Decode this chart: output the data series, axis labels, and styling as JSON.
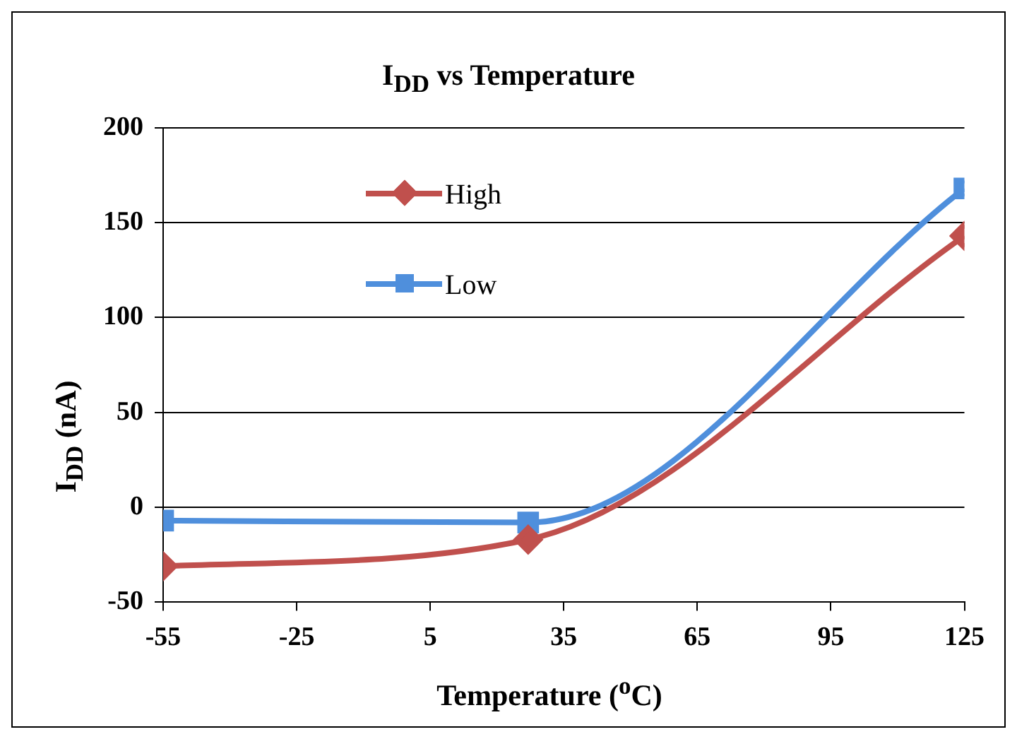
{
  "chart_data": {
    "type": "line",
    "title": "I$_{DD}$ vs Temperature",
    "xlabel": "Temperature ($^{o}$C)",
    "ylabel": "I$_{DD}$ (nA)",
    "xlim": [
      -55,
      125
    ],
    "xticks": [
      -55,
      -25,
      5,
      35,
      65,
      95,
      125
    ],
    "ylim": [
      -50,
      200
    ],
    "yticks": [
      -50,
      0,
      50,
      100,
      150,
      200
    ],
    "grid": "y",
    "legend": "top left",
    "line_style": "solid",
    "series": [
      {
        "name": "High",
        "color": "#c0504d",
        "marker": "diamond",
        "x": [
          -55,
          27,
          125
        ],
        "values": [
          -31,
          -17,
          143
        ]
      },
      {
        "name": "Low",
        "color": "#4f8fdc",
        "marker": "square",
        "x": [
          -55,
          27,
          125
        ],
        "values": [
          -7,
          -8,
          168
        ]
      }
    ]
  }
}
